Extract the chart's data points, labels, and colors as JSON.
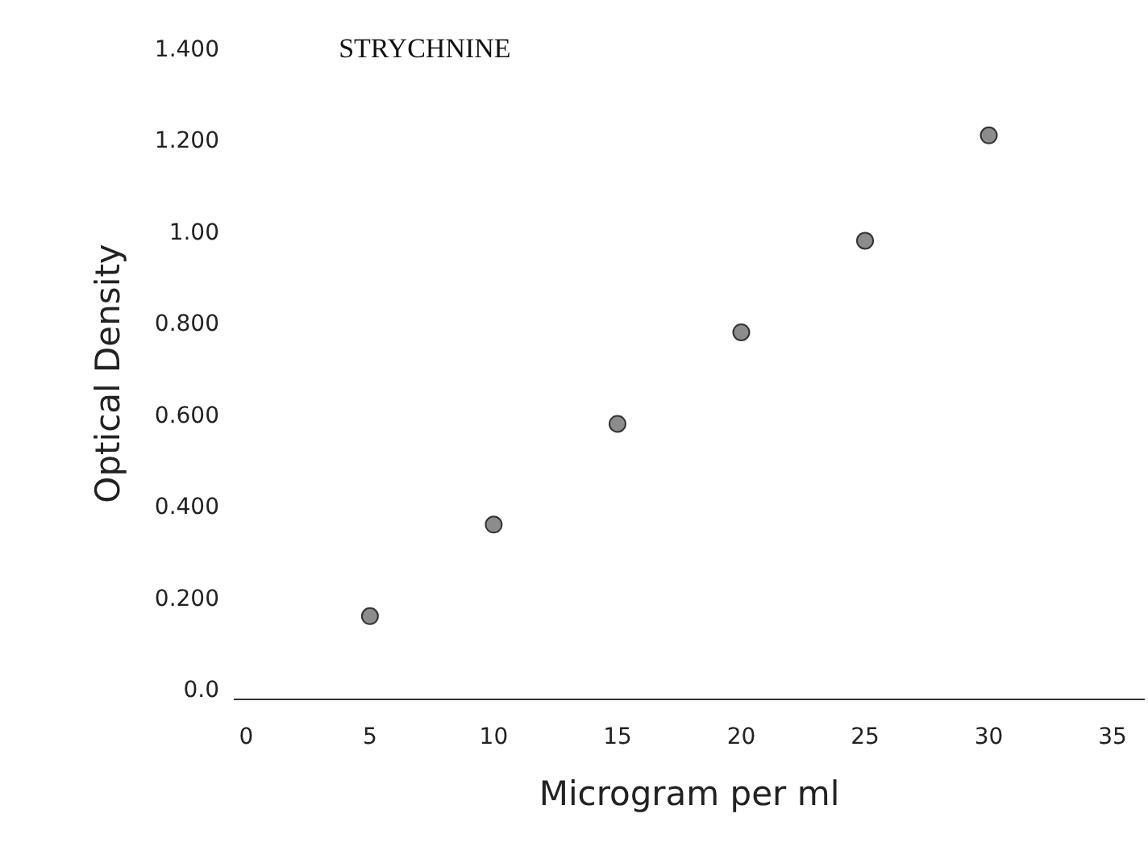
{
  "chart_data": {
    "type": "scatter",
    "title": "STRYCHNINE",
    "xlabel": "Microgram per ml",
    "ylabel": "Optical Density",
    "x": [
      5,
      10,
      15,
      20,
      25,
      30
    ],
    "series": [
      {
        "color": "#8c8c8c",
        "values": [
          0.16,
          0.36,
          0.58,
          0.78,
          0.98,
          1.21
        ]
      }
    ],
    "xlim": [
      -0.5,
      36.3
    ],
    "ylim": [
      -0.02,
      1.4
    ],
    "xticks": [
      0,
      5,
      10,
      15,
      20,
      25,
      30,
      35
    ],
    "yticks": [
      {
        "value": 0,
        "label": "0.0"
      },
      {
        "value": 0.2,
        "label": "0.200"
      },
      {
        "value": 0.4,
        "label": "0.400"
      },
      {
        "value": 0.6,
        "label": "0.600"
      },
      {
        "value": 0.8,
        "label": "0.800"
      },
      {
        "value": 1.0,
        "label": "1.00"
      },
      {
        "value": 1.2,
        "label": "1.200"
      },
      {
        "value": 1.4,
        "label": "1.400"
      }
    ],
    "marker": "circle",
    "legend": false
  }
}
